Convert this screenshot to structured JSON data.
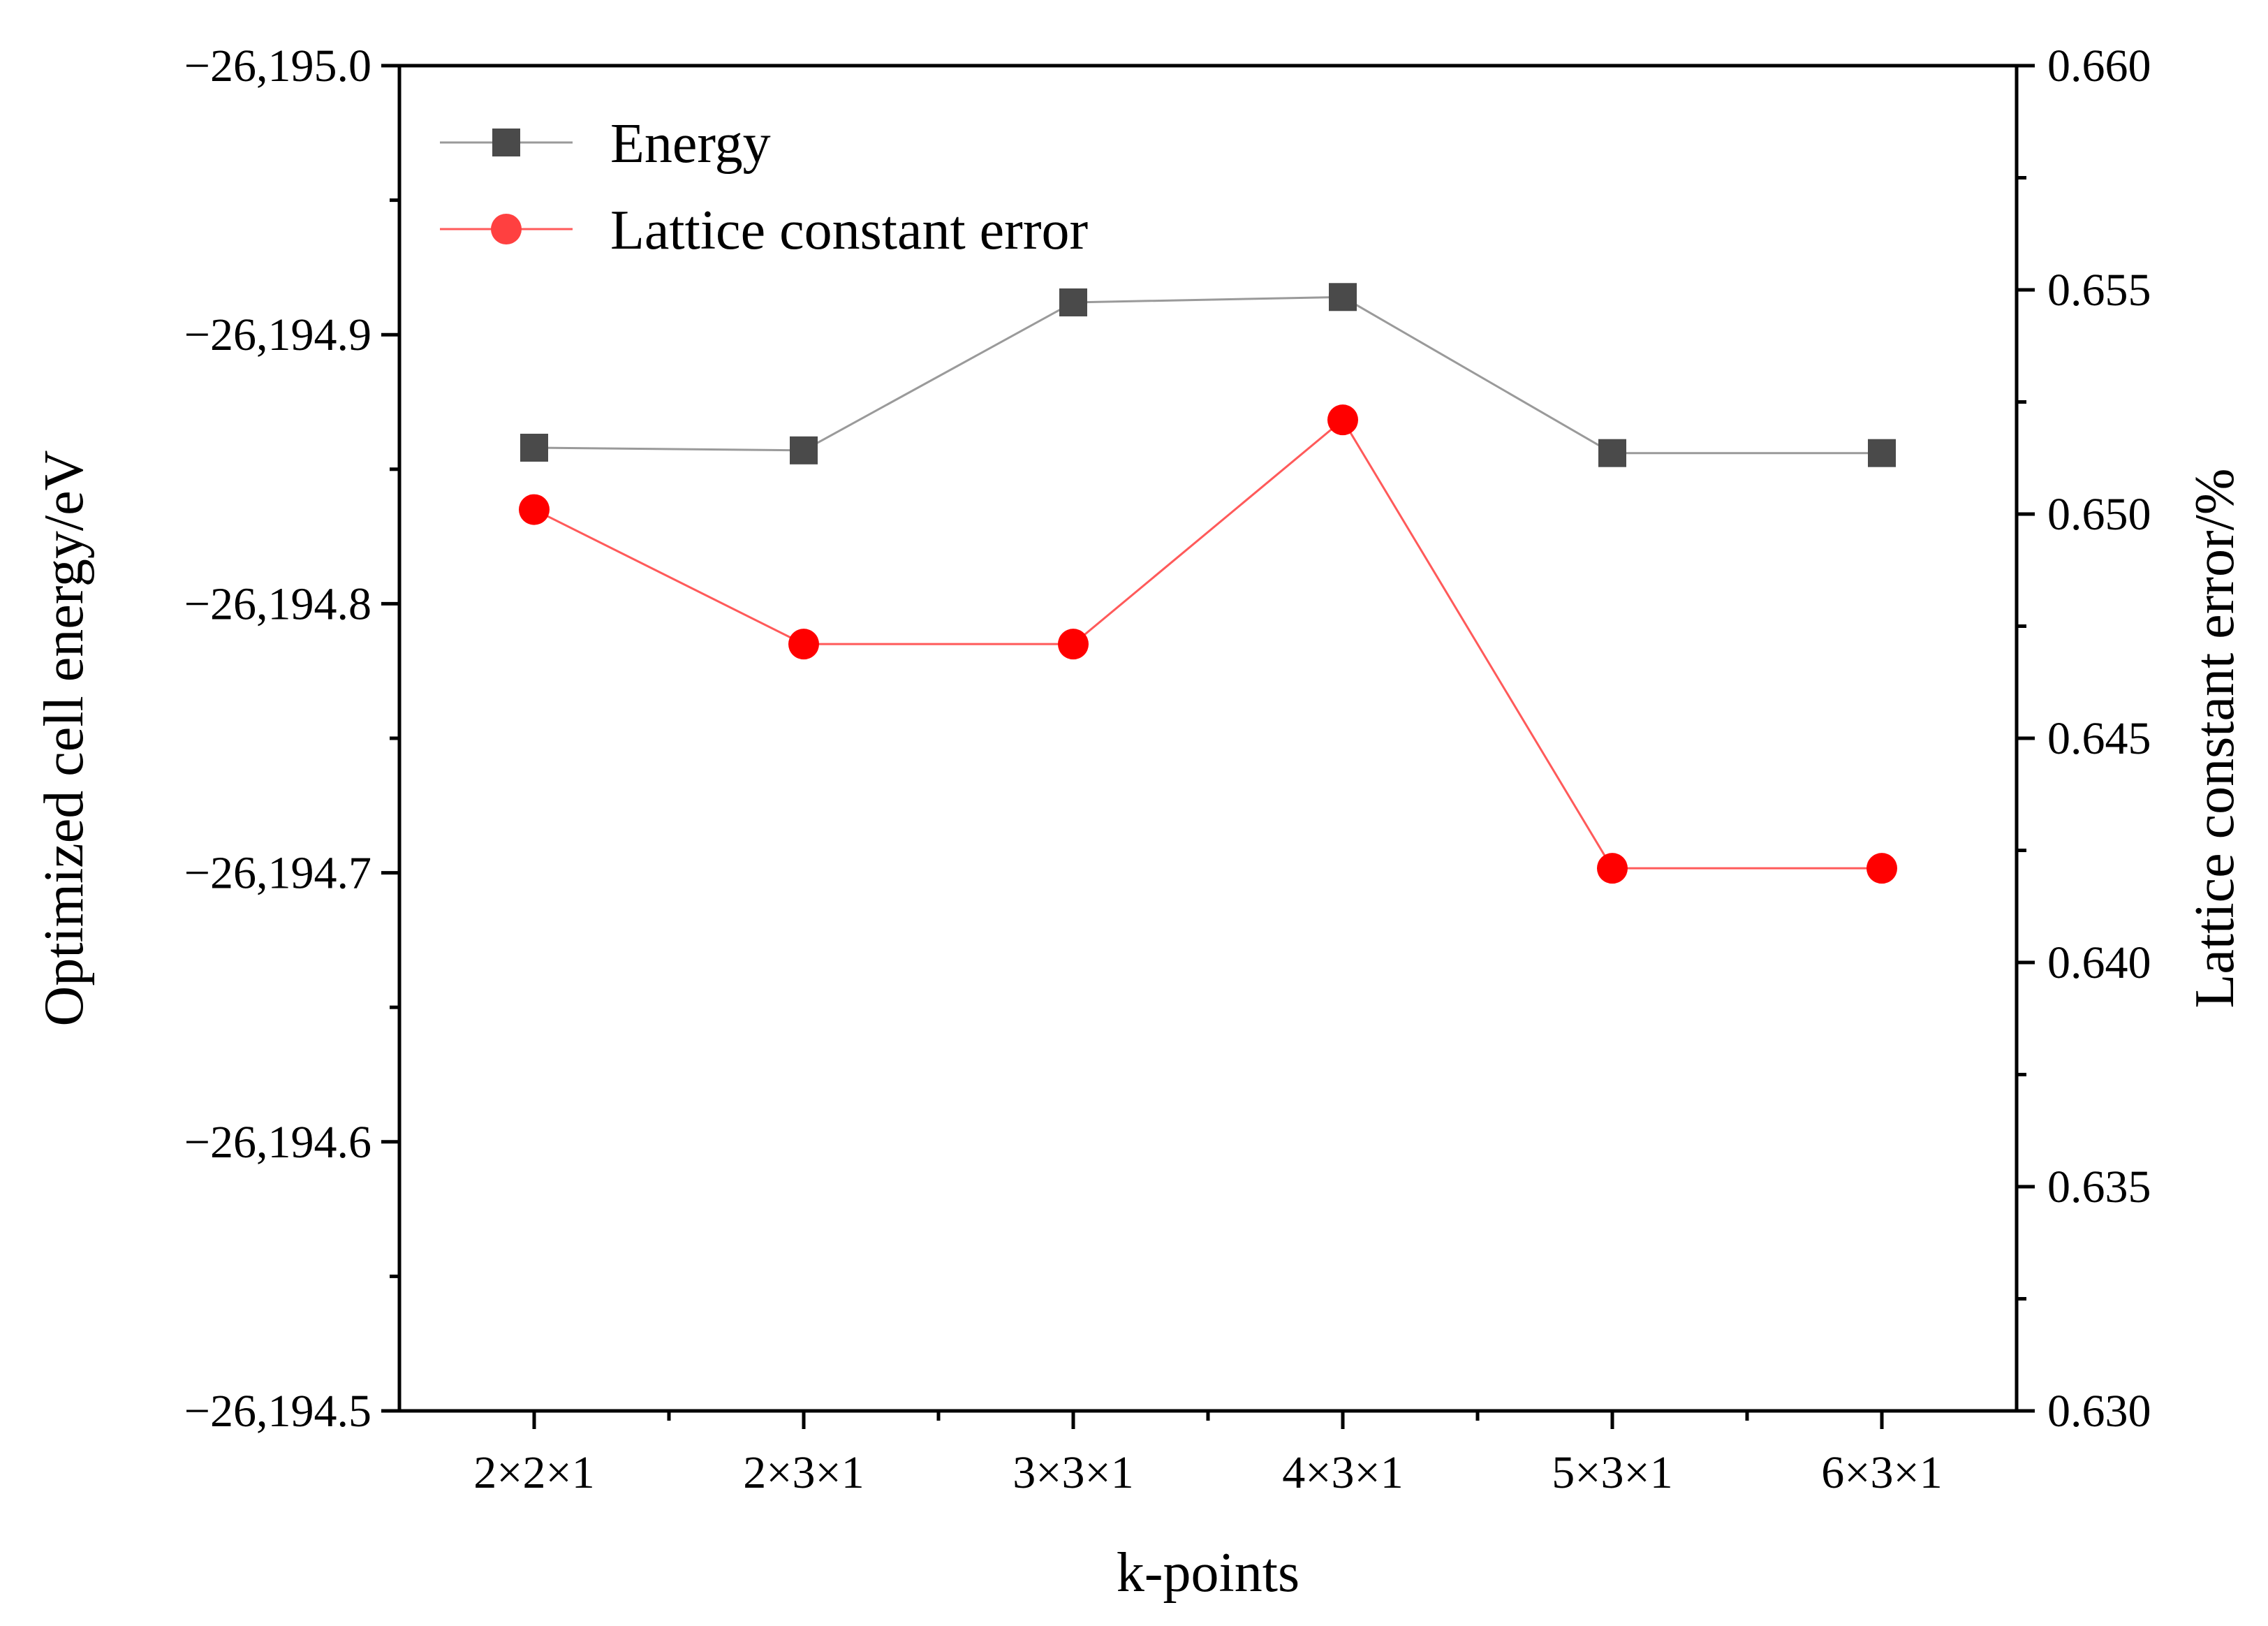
{
  "chart_data": {
    "type": "line",
    "xlabel": "k-points",
    "ylabel_left": "Optimized cell energy/eV",
    "ylabel_right": "Lattice constant error/%",
    "categories": [
      "2×2×1",
      "2×3×1",
      "3×3×1",
      "4×3×1",
      "5×3×1",
      "6×3×1"
    ],
    "y_left": {
      "range": [
        -26194.5,
        -26195.0
      ],
      "ticks": [
        -26195.0,
        -26194.9,
        -26194.8,
        -26194.7,
        -26194.6,
        -26194.5
      ],
      "tick_labels": [
        "−26,195.0",
        "−26,194.9",
        "−26,194.8",
        "−26,194.7",
        "−26,194.6",
        "−26,194.5"
      ]
    },
    "y_right": {
      "range": [
        0.63,
        0.66
      ],
      "ticks": [
        0.63,
        0.635,
        0.64,
        0.645,
        0.65,
        0.655,
        0.66
      ],
      "tick_labels": [
        "0.630",
        "0.635",
        "0.640",
        "0.645",
        "0.650",
        "0.655",
        "0.660"
      ]
    },
    "series": [
      {
        "name": "Energy",
        "axis": "left",
        "marker": "square",
        "color": "#4a4a4a",
        "line_color": "#9a9a9a",
        "values": [
          -26194.858,
          -26194.857,
          -26194.912,
          -26194.914,
          -26194.856,
          -26194.856
        ]
      },
      {
        "name": "Lattice constant error",
        "axis": "right",
        "marker": "circle",
        "color": "#ff0000",
        "line_color": "#ff5a5a",
        "values": [
          0.6501,
          0.6471,
          0.6471,
          0.6521,
          0.6421,
          0.6421
        ]
      }
    ],
    "legend": {
      "position": "top-left",
      "entries": [
        "Energy",
        "Lattice constant error"
      ]
    }
  }
}
